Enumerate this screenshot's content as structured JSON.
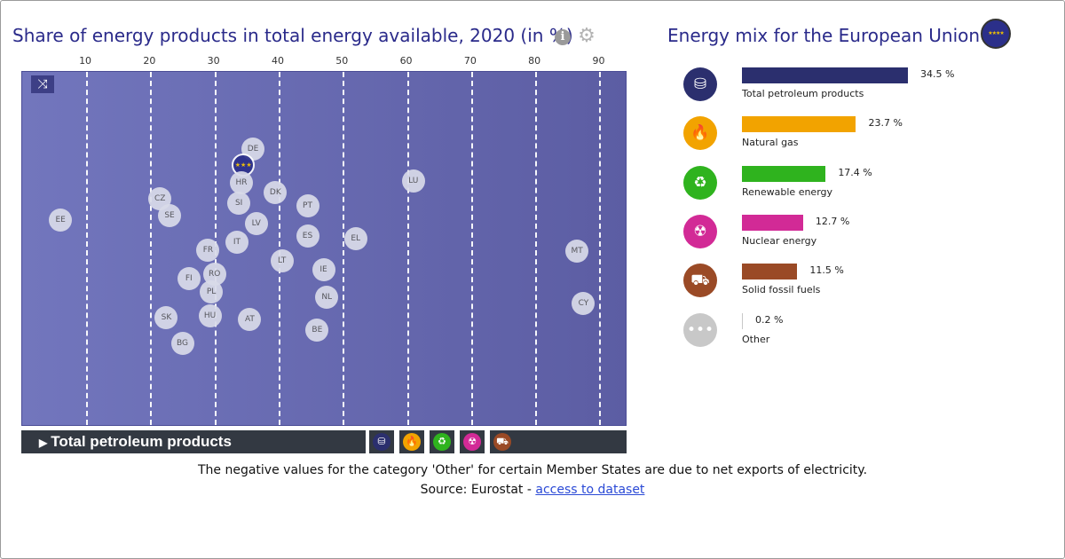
{
  "title": "Share of energy products in total energy available, 2020 (in %)",
  "info_icon": "info-icon",
  "settings_icon": "gear-icon",
  "shuffle_icon": "shuffle-icon",
  "selected_product": "Total petroleum products",
  "category_buttons": [
    {
      "name": "Total petroleum products",
      "icon": "oil-barrel-icon",
      "color": "#2b2f6e"
    },
    {
      "name": "Natural gas",
      "icon": "flame-icon",
      "color": "#f2a300"
    },
    {
      "name": "Renewable energy",
      "icon": "recycle-icon",
      "color": "#2fb31e"
    },
    {
      "name": "Nuclear energy",
      "icon": "radiation-icon",
      "color": "#d22a96"
    },
    {
      "name": "Solid fossil fuels",
      "icon": "coal-cart-icon",
      "color": "#9a4a26"
    }
  ],
  "footnote": "The negative values for the category 'Other' for certain Member States are due to net exports of electricity.",
  "source_prefix": "Source: Eurostat - ",
  "source_link": "access to dataset",
  "side_panel": {
    "title": "Energy mix for the European Union",
    "flag_icon": "eu-flag-icon"
  },
  "colors": {
    "title": "#2a2a8a",
    "plot_bg_left": "#7276bd",
    "plot_bg_right": "#5c5da3",
    "bar_dark": "#333942",
    "link": "#2b4ad6"
  },
  "chart_data": [
    {
      "type": "scatter",
      "title": "Share of energy products in total energy available, 2020 (in %)",
      "series_shown": "Total petroleum products",
      "xlim": [
        0,
        95
      ],
      "x_ticks": [
        10,
        20,
        30,
        40,
        50,
        60,
        70,
        80,
        90
      ],
      "grid": true,
      "points": [
        {
          "label": "EE",
          "x": 6
        },
        {
          "label": "CZ",
          "x": 21.5
        },
        {
          "label": "SE",
          "x": 23
        },
        {
          "label": "FR",
          "x": 29
        },
        {
          "label": "FI",
          "x": 26
        },
        {
          "label": "PL",
          "x": 29.5
        },
        {
          "label": "RO",
          "x": 30
        },
        {
          "label": "HU",
          "x": 29.3
        },
        {
          "label": "SK",
          "x": 22.5
        },
        {
          "label": "BG",
          "x": 25
        },
        {
          "label": "DE",
          "x": 36
        },
        {
          "label": "EU",
          "x": 34.5
        },
        {
          "label": "HR",
          "x": 34.2
        },
        {
          "label": "SI",
          "x": 33.8
        },
        {
          "label": "DK",
          "x": 39.5
        },
        {
          "label": "LV",
          "x": 36.5
        },
        {
          "label": "IT",
          "x": 33.5
        },
        {
          "label": "AT",
          "x": 35.5
        },
        {
          "label": "LT",
          "x": 40.5
        },
        {
          "label": "PT",
          "x": 44.5
        },
        {
          "label": "ES",
          "x": 44.5
        },
        {
          "label": "IE",
          "x": 47
        },
        {
          "label": "NL",
          "x": 47.5
        },
        {
          "label": "BE",
          "x": 46
        },
        {
          "label": "EL",
          "x": 52
        },
        {
          "label": "LU",
          "x": 61
        },
        {
          "label": "MT",
          "x": 86.5
        },
        {
          "label": "CY",
          "x": 87.5
        }
      ]
    },
    {
      "type": "bar",
      "title": "Energy mix for the European Union",
      "orientation": "horizontal",
      "xlim": [
        0,
        35
      ],
      "categories": [
        "Total petroleum products",
        "Natural gas",
        "Renewable energy",
        "Nuclear energy",
        "Solid fossil fuels",
        "Other"
      ],
      "values": [
        34.5,
        23.7,
        17.4,
        12.7,
        11.5,
        0.2
      ],
      "value_labels": [
        "34.5 %",
        "23.7 %",
        "17.4 %",
        "12.7 %",
        "11.5 %",
        "0.2 %"
      ],
      "colors": [
        "#2b2f6e",
        "#f2a300",
        "#2fb31e",
        "#d22a96",
        "#9a4a26",
        "#c8c8c8"
      ],
      "icons": [
        "oil-barrel-icon",
        "flame-icon",
        "recycle-icon",
        "radiation-icon",
        "coal-cart-icon",
        "ellipsis-icon"
      ]
    }
  ]
}
